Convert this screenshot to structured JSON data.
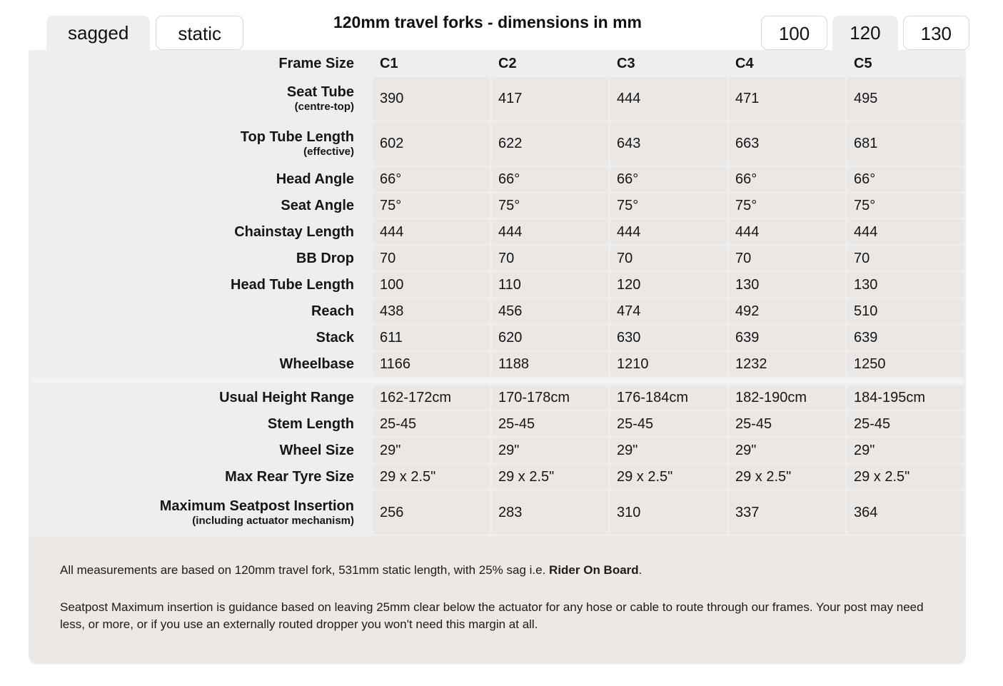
{
  "title": "120mm travel forks - dimensions in mm",
  "tabs": {
    "left": [
      {
        "label": "sagged",
        "active": true
      },
      {
        "label": "static",
        "active": false
      }
    ],
    "right": [
      {
        "label": "100",
        "active": false
      },
      {
        "label": "120",
        "active": true
      },
      {
        "label": "130",
        "active": false
      }
    ]
  },
  "table": {
    "corner_label": "Frame Size",
    "columns": [
      "C1",
      "C2",
      "C3",
      "C4",
      "C5"
    ],
    "sections": [
      {
        "name": "geometry",
        "rows": [
          {
            "label": "Seat Tube",
            "sublabel": "(centre-top)",
            "values": [
              "390",
              "417",
              "444",
              "471",
              "495"
            ]
          },
          {
            "label": "Top Tube Length",
            "sublabel": "(effective)",
            "values": [
              "602",
              "622",
              "643",
              "663",
              "681"
            ]
          },
          {
            "label": "Head Angle",
            "values": [
              "66°",
              "66°",
              "66°",
              "66°",
              "66°"
            ]
          },
          {
            "label": "Seat Angle",
            "values": [
              "75°",
              "75°",
              "75°",
              "75°",
              "75°"
            ]
          },
          {
            "label": "Chainstay Length",
            "values": [
              "444",
              "444",
              "444",
              "444",
              "444"
            ]
          },
          {
            "label": "BB Drop",
            "values": [
              "70",
              "70",
              "70",
              "70",
              "70"
            ]
          },
          {
            "label": "Head Tube Length",
            "values": [
              "100",
              "110",
              "120",
              "130",
              "130"
            ]
          },
          {
            "label": "Reach",
            "values": [
              "438",
              "456",
              "474",
              "492",
              "510"
            ]
          },
          {
            "label": "Stack",
            "values": [
              "611",
              "620",
              "630",
              "639",
              "639"
            ]
          },
          {
            "label": "Wheelbase",
            "values": [
              "1166",
              "1188",
              "1210",
              "1232",
              "1250"
            ]
          }
        ]
      },
      {
        "name": "fit",
        "rows": [
          {
            "label": "Usual Height Range",
            "values": [
              "162-172cm",
              "170-178cm",
              "176-184cm",
              "182-190cm",
              "184-195cm"
            ]
          },
          {
            "label": "Stem Length",
            "values": [
              "25-45",
              "25-45",
              "25-45",
              "25-45",
              "25-45"
            ]
          },
          {
            "label": "Wheel Size",
            "values": [
              "29\"",
              "29\"",
              "29\"",
              "29\"",
              "29\""
            ]
          },
          {
            "label": "Max Rear Tyre Size",
            "values": [
              "29 x 2.5\"",
              "29 x 2.5\"",
              "29 x 2.5\"",
              "29 x 2.5\"",
              "29 x 2.5\""
            ]
          },
          {
            "label": "Maximum Seatpost Insertion",
            "sublabel": "(including actuator mechanism)",
            "values": [
              "256",
              "283",
              "310",
              "337",
              "364"
            ]
          }
        ]
      }
    ]
  },
  "footnotes": {
    "line1_prefix": "All measurements are based on 120mm travel fork, 531mm static length, with 25% sag i.e. ",
    "line1_bold": "Rider On Board",
    "line1_suffix": ".",
    "line2": "Seatpost Maximum insertion is guidance based on leaving 25mm clear below the actuator for any hose or cable to route through our frames. Your post may need less, or more, or if you use an externally routed dropper you won't need this margin at all."
  },
  "colors": {
    "panel_bg": "#efeeee",
    "cell_bg": "#ebe7e5",
    "separator_bg": "#f4f3f2",
    "footnote_bg": "#ebe8e6",
    "tab_border": "#d8d8d8",
    "text": "#161616"
  }
}
